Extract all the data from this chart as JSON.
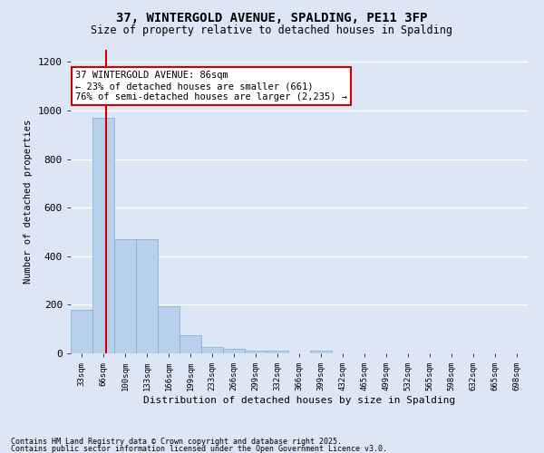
{
  "title": "37, WINTERGOLD AVENUE, SPALDING, PE11 3FP",
  "subtitle": "Size of property relative to detached houses in Spalding",
  "xlabel": "Distribution of detached houses by size in Spalding",
  "ylabel": "Number of detached properties",
  "bar_color": "#b8d0eb",
  "bar_edge_color": "#7aabce",
  "background_color": "#dce6f5",
  "grid_color": "#ffffff",
  "annotation_line_color": "#cc0000",
  "annotation_property_sqm": 86,
  "annotation_text_line1": "37 WINTERGOLD AVENUE: 86sqm",
  "annotation_text_line2": "← 23% of detached houses are smaller (661)",
  "annotation_text_line3": "76% of semi-detached houses are larger (2,235) →",
  "annotation_box_color": "#ffffff",
  "annotation_box_edge_color": "#cc0000",
  "footnote1": "Contains HM Land Registry data © Crown copyright and database right 2025.",
  "footnote2": "Contains public sector information licensed under the Open Government Licence v3.0.",
  "bin_labels": [
    "33sqm",
    "66sqm",
    "100sqm",
    "133sqm",
    "166sqm",
    "199sqm",
    "233sqm",
    "266sqm",
    "299sqm",
    "332sqm",
    "366sqm",
    "399sqm",
    "432sqm",
    "465sqm",
    "499sqm",
    "532sqm",
    "565sqm",
    "598sqm",
    "632sqm",
    "665sqm",
    "698sqm"
  ],
  "bin_values": [
    180,
    970,
    470,
    470,
    195,
    75,
    25,
    18,
    10,
    10,
    0,
    10,
    0,
    0,
    0,
    0,
    0,
    0,
    0,
    0,
    0
  ],
  "ylim": [
    0,
    1250
  ],
  "yticks": [
    0,
    200,
    400,
    600,
    800,
    1000,
    1200
  ]
}
